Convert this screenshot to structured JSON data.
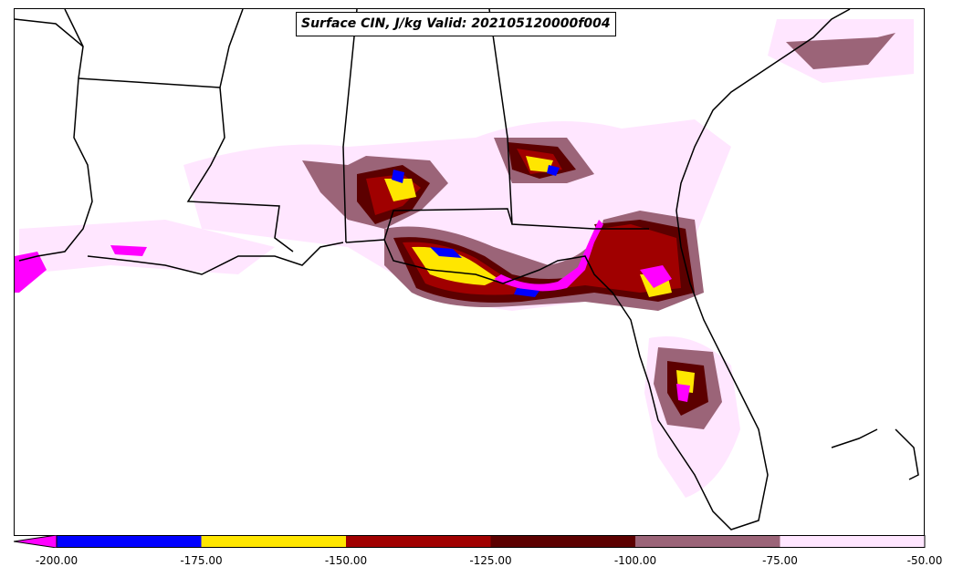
{
  "title": "Surface CIN, J/kg Valid: 202105120000f004",
  "colorbar": {
    "extend": "min",
    "extend_color": "#ff00ff",
    "bins": [
      {
        "from": -200,
        "to": -175,
        "color": "#0000ff"
      },
      {
        "from": -175,
        "to": -150,
        "color": "#ffe600"
      },
      {
        "from": -150,
        "to": -125,
        "color": "#a00000"
      },
      {
        "from": -125,
        "to": -100,
        "color": "#5c0000"
      },
      {
        "from": -100,
        "to": -75,
        "color": "#9b6478"
      },
      {
        "from": -75,
        "to": -50,
        "color": "#ffe6ff"
      }
    ],
    "tick_labels": [
      "-200.00",
      "-175.00",
      "-150.00",
      "-125.00",
      "-100.00",
      "-75.00",
      "-50.00"
    ]
  },
  "map": {
    "region": "Southeastern United States",
    "features": [
      "coastlines",
      "state-borders"
    ]
  }
}
